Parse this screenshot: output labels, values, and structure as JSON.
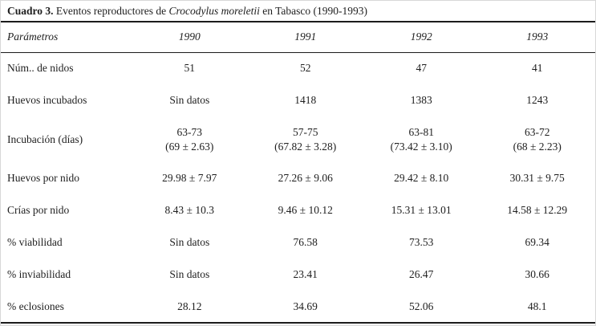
{
  "title": {
    "label": "Cuadro 3.",
    "text_before_species": " Eventos reproductores de ",
    "species": "Crocodylus moreletii",
    "text_after_species": " en Tabasco (1990-1993)"
  },
  "table": {
    "header": {
      "param_label": "Parámetros",
      "years": [
        "1990",
        "1991",
        "1992",
        "1993"
      ]
    },
    "rows": [
      {
        "label": "Núm.. de nidos",
        "values": [
          "51",
          "52",
          "47",
          "41"
        ]
      },
      {
        "label": "Huevos incubados",
        "values": [
          "Sin datos",
          "1418",
          "1383",
          "1243"
        ]
      },
      {
        "label": "Incubación (días)",
        "values": [
          "63-73\n(69 ± 2.63)",
          "57-75\n(67.82 ± 3.28)",
          "63-81\n(73.42 ± 3.10)",
          "63-72\n(68 ± 2.23)"
        ]
      },
      {
        "label": "Huevos por nido",
        "values": [
          "29.98 ± 7.97",
          "27.26 ± 9.06",
          "29.42 ± 8.10",
          "30.31 ± 9.75"
        ]
      },
      {
        "label": "Crías por nido",
        "values": [
          "8.43 ± 10.3",
          "9.46 ± 10.12",
          "15.31 ± 13.01",
          "14.58 ± 12.29"
        ]
      },
      {
        "label": "% viabilidad",
        "values": [
          "Sin datos",
          "76.58",
          "73.53",
          "69.34"
        ]
      },
      {
        "label": "% inviabilidad",
        "values": [
          "Sin datos",
          "23.41",
          "26.47",
          "30.66"
        ]
      },
      {
        "label": "% eclosiones",
        "values": [
          "28.12",
          "34.69",
          "52.06",
          "48.1"
        ]
      }
    ]
  },
  "chart_data": {
    "type": "table",
    "title": "Cuadro 3. Eventos reproductores de Crocodylus moreletii en Tabasco (1990-1993)",
    "columns": [
      "Parámetros",
      "1990",
      "1991",
      "1992",
      "1993"
    ],
    "rows": [
      [
        "Núm.. de nidos",
        "51",
        "52",
        "47",
        "41"
      ],
      [
        "Huevos incubados",
        "Sin datos",
        "1418",
        "1383",
        "1243"
      ],
      [
        "Incubación (días)",
        "63-73 (69 ± 2.63)",
        "57-75 (67.82 ± 3.28)",
        "63-81 (73.42 ± 3.10)",
        "63-72 (68 ± 2.23)"
      ],
      [
        "Huevos por nido",
        "29.98 ± 7.97",
        "27.26 ± 9.06",
        "29.42 ± 8.10",
        "30.31 ± 9.75"
      ],
      [
        "Crías por nido",
        "8.43 ± 10.3",
        "9.46 ± 10.12",
        "15.31 ± 13.01",
        "14.58 ± 12.29"
      ],
      [
        "% viabilidad",
        "Sin datos",
        "76.58",
        "73.53",
        "69.34"
      ],
      [
        "% inviabilidad",
        "Sin datos",
        "23.41",
        "26.47",
        "30.66"
      ],
      [
        "% eclosiones",
        "28.12",
        "34.69",
        "52.06",
        "48.1"
      ]
    ]
  },
  "colors": {
    "text": "#1e1e1e",
    "rule": "#1c1c1c",
    "background": "#ffffff"
  }
}
